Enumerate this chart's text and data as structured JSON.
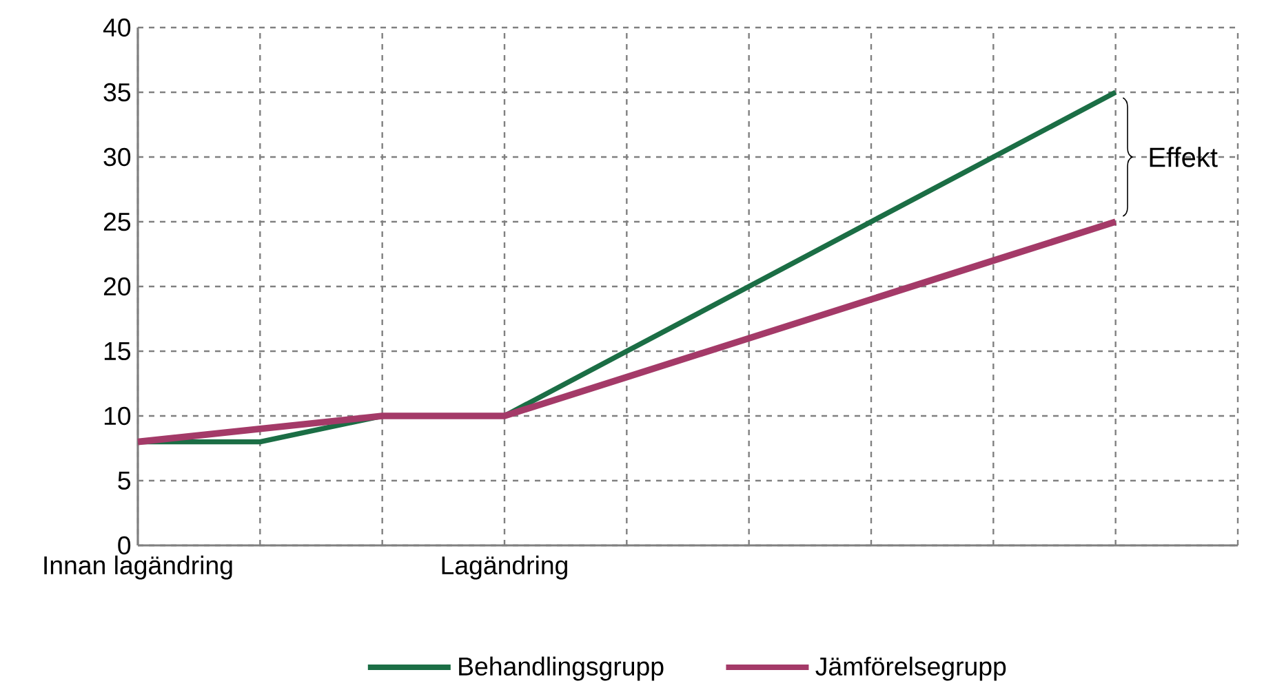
{
  "chart_data": {
    "type": "line",
    "categories": [
      "Innan lagändring",
      null,
      null,
      "Lagändring",
      null,
      null,
      null,
      null,
      null,
      null
    ],
    "series": [
      {
        "name": "Behandlingsgrupp",
        "color": "#1b6e45",
        "values": [
          8,
          8,
          10,
          10,
          15,
          20,
          25,
          30,
          35,
          null
        ]
      },
      {
        "name": "Jämförelsegrupp",
        "color": "#a43a68",
        "values": [
          8,
          9,
          10,
          10,
          13,
          16,
          19,
          22,
          25,
          null
        ]
      }
    ],
    "ylim": [
      0,
      40
    ],
    "yticks": [
      0,
      5,
      10,
      15,
      20,
      25,
      30,
      35,
      40
    ],
    "grid": true,
    "legend": "bottom",
    "marker": "none",
    "line_style": "solid",
    "annotations": [
      "Effekt"
    ]
  }
}
